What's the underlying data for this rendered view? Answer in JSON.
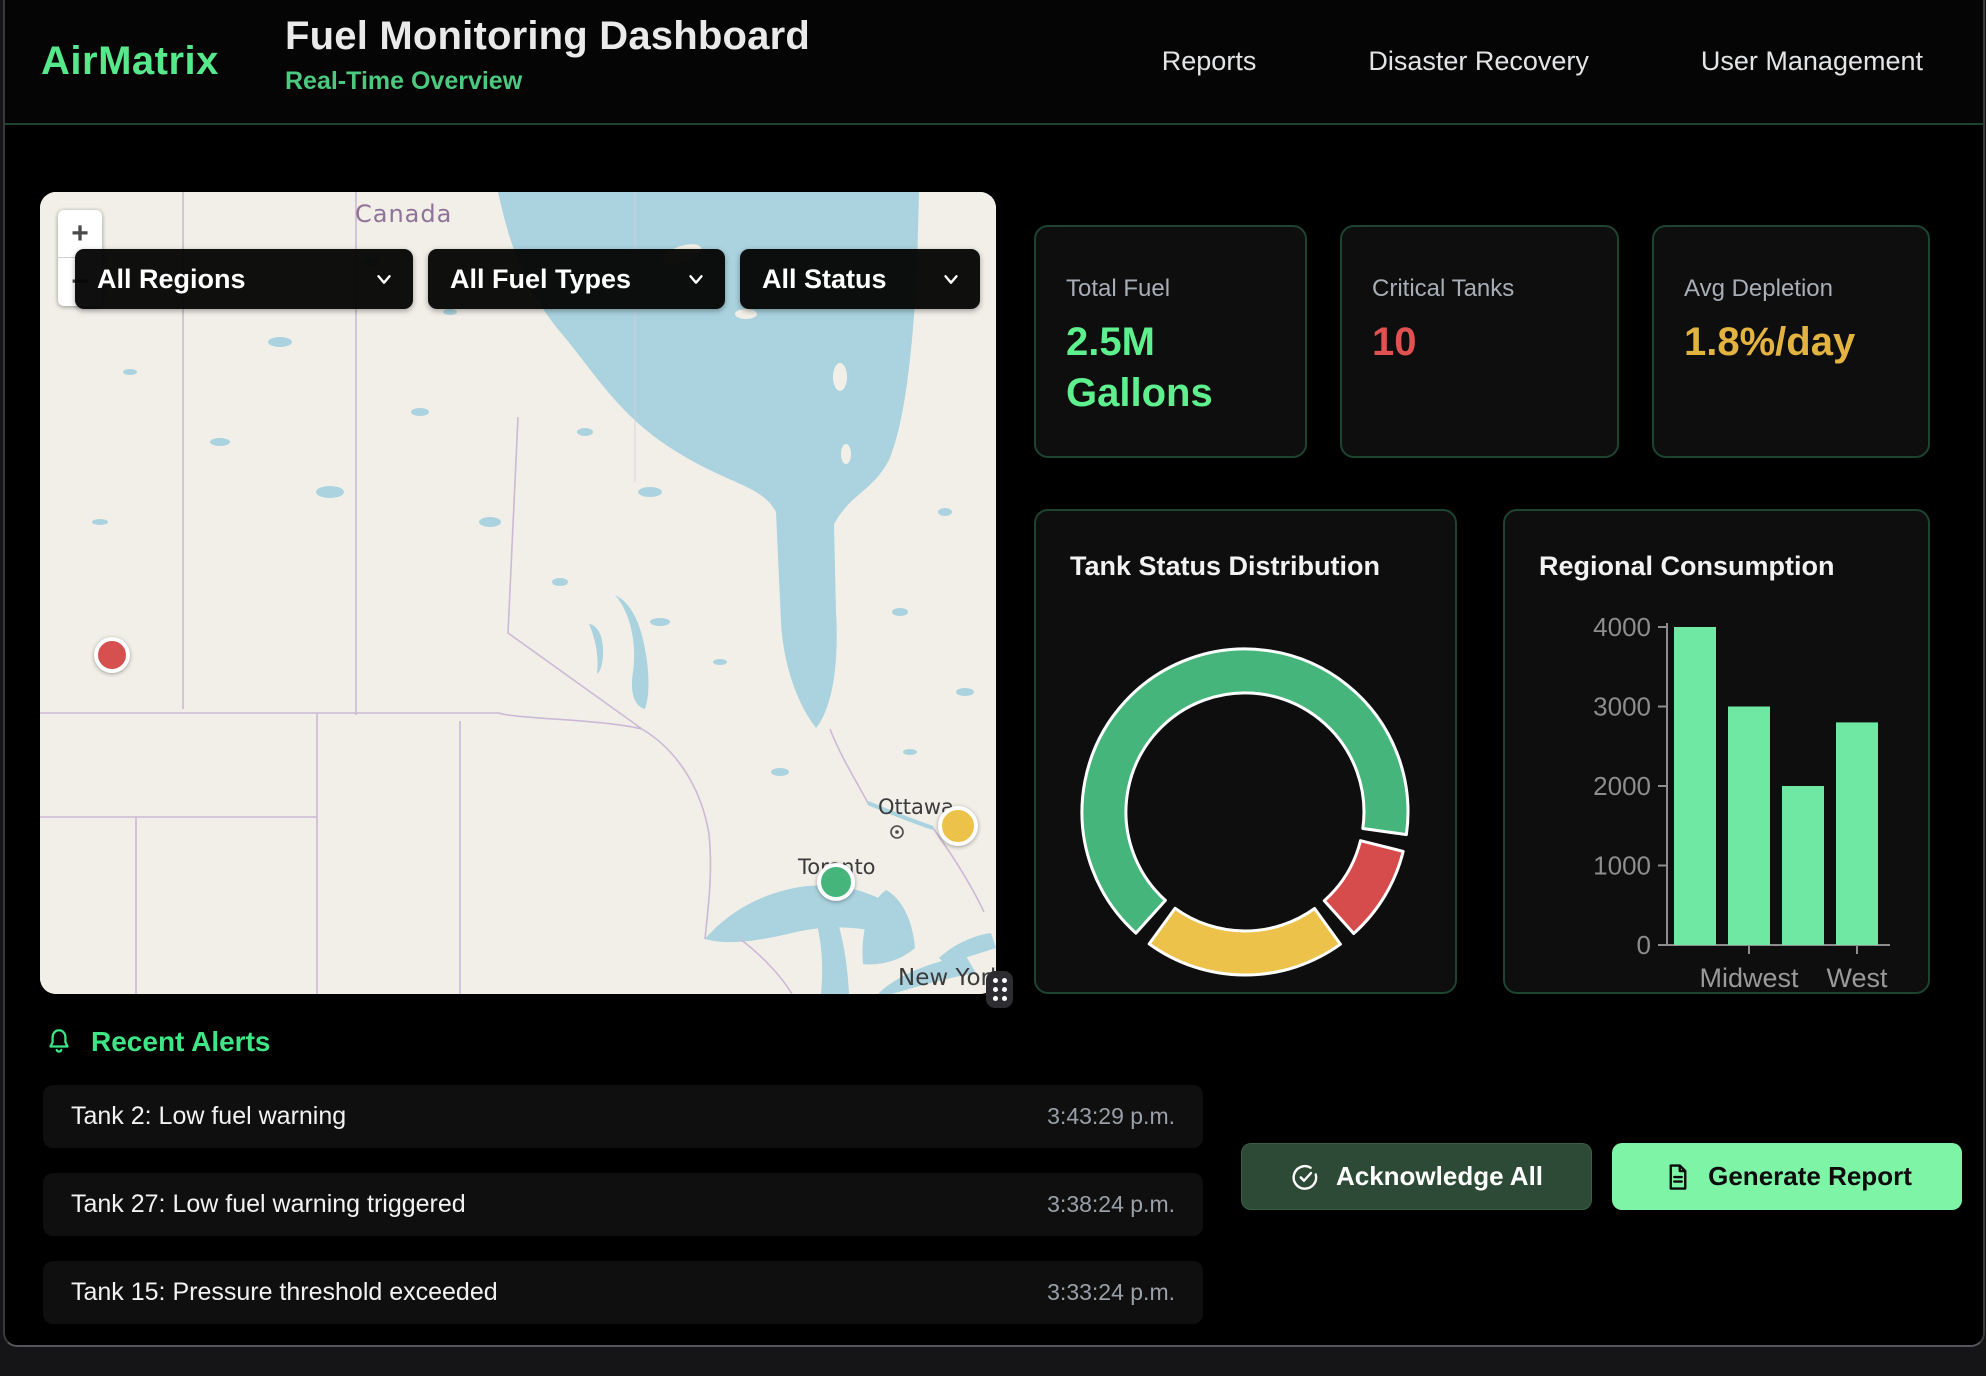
{
  "header": {
    "brand": "AirMatrix",
    "title": "Fuel Monitoring Dashboard",
    "subtitle": "Real-Time Overview",
    "nav": [
      {
        "label": "Reports"
      },
      {
        "label": "Disaster Recovery"
      },
      {
        "label": "User Management"
      }
    ]
  },
  "map": {
    "filters": [
      {
        "label": "All Regions"
      },
      {
        "label": "All Fuel Types"
      },
      {
        "label": "All Status"
      }
    ],
    "zoom_in_label": "+",
    "zoom_out_label": "−",
    "country_label": "Canada",
    "city_labels": [
      "Ottawa",
      "Toronto",
      "New York"
    ],
    "markers": [
      {
        "status": "critical",
        "color": "#d65050"
      },
      {
        "status": "warning",
        "color": "#ecc24b"
      },
      {
        "status": "normal",
        "color": "#45b57c"
      }
    ]
  },
  "stats": [
    {
      "label": "Total Fuel",
      "value": "2.5M Gallons",
      "color": "#5ef08f"
    },
    {
      "label": "Critical Tanks",
      "value": "10",
      "color": "#e05252"
    },
    {
      "label": "Avg Depletion",
      "value": "1.8%/day",
      "color": "#e3b341"
    }
  ],
  "chart_data": [
    {
      "type": "pie",
      "variant": "donut",
      "title": "Tank Status Distribution",
      "segments": [
        {
          "color": "#45b57c",
          "value": 69
        },
        {
          "color": "#d64c4c",
          "value": 10
        },
        {
          "color": "#ecc24b",
          "value": 21
        }
      ],
      "legend": "none",
      "start_angle_deg": 222,
      "segment_gap_deg": 6
    },
    {
      "type": "bar",
      "title": "Regional Consumption",
      "categories": [
        "",
        "Midwest",
        "",
        "West"
      ],
      "values": [
        4000,
        3000,
        2000,
        2800
      ],
      "bar_color": "#6ee8a2",
      "ylim": [
        0,
        4000
      ],
      "yticks": [
        0,
        1000,
        2000,
        3000,
        4000
      ],
      "grid": "off",
      "axis_color": "#8d8d8d"
    }
  ],
  "alerts": {
    "heading": "Recent Alerts",
    "items": [
      {
        "text": "Tank 2: Low fuel warning",
        "time": "3:43:29 p.m."
      },
      {
        "text": "Tank 27: Low fuel warning triggered",
        "time": "3:38:24 p.m."
      },
      {
        "text": "Tank 15: Pressure threshold exceeded",
        "time": "3:33:24 p.m."
      }
    ]
  },
  "actions": {
    "acknowledge_label": "Acknowledge All",
    "generate_label": "Generate Report"
  },
  "colors": {
    "accent_green": "#57e88b",
    "value_green": "#5ef08f",
    "critical_red": "#e05252",
    "warning_amber": "#e3b341",
    "generate_button_bg": "#7ef5a6",
    "acknowledge_button_bg": "#2c4a35",
    "card_border": "#1d4331",
    "map_water": "#aad3df",
    "map_land": "#f2efe8"
  }
}
